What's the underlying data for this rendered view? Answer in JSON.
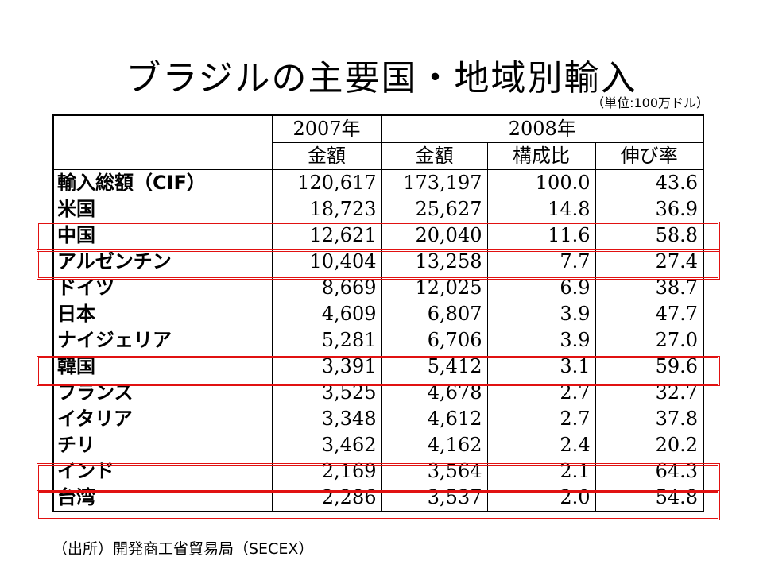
{
  "title": "ブラジルの主要国・地域別輸入",
  "unit": "（単位:100万ドル）",
  "header": {
    "year1": "2007年",
    "year2": "2008年",
    "col_amount_2007": "金額",
    "col_amount_2008": "金額",
    "col_share": "構成比",
    "col_growth": "伸び率"
  },
  "rows": [
    {
      "name": "輸入総額（CIF）",
      "v2007": "120,617",
      "v2008": "173,197",
      "share": "100.0",
      "growth": "43.6"
    },
    {
      "name": "米国",
      "v2007": "18,723",
      "v2008": "25,627",
      "share": "14.8",
      "growth": "36.9"
    },
    {
      "name": "中国",
      "v2007": "12,621",
      "v2008": "20,040",
      "share": "11.6",
      "growth": "58.8"
    },
    {
      "name": "アルゼンチン",
      "v2007": "10,404",
      "v2008": "13,258",
      "share": "7.7",
      "growth": "27.4"
    },
    {
      "name": "ドイツ",
      "v2007": "8,669",
      "v2008": "12,025",
      "share": "6.9",
      "growth": "38.7"
    },
    {
      "name": "日本",
      "v2007": "4,609",
      "v2008": "6,807",
      "share": "3.9",
      "growth": "47.7"
    },
    {
      "name": "ナイジェリア",
      "v2007": "5,281",
      "v2008": "6,706",
      "share": "3.9",
      "growth": "27.0"
    },
    {
      "name": "韓国",
      "v2007": "3,391",
      "v2008": "5,412",
      "share": "3.1",
      "growth": "59.6"
    },
    {
      "name": "フランス",
      "v2007": "3,525",
      "v2008": "4,678",
      "share": "2.7",
      "growth": "32.7"
    },
    {
      "name": "イタリア",
      "v2007": "3,348",
      "v2008": "4,612",
      "share": "2.7",
      "growth": "37.8"
    },
    {
      "name": "チリ",
      "v2007": "3,462",
      "v2008": "4,162",
      "share": "2.4",
      "growth": "20.2"
    },
    {
      "name": "インド",
      "v2007": "2,169",
      "v2008": "3,564",
      "share": "2.1",
      "growth": "64.3"
    },
    {
      "name": "台湾",
      "v2007": "2,286",
      "v2008": "3,537",
      "share": "2.0",
      "growth": "54.8"
    }
  ],
  "highlight_color": "#e11111",
  "source": "（出所）開発商工省貿易局（SECEX）"
}
